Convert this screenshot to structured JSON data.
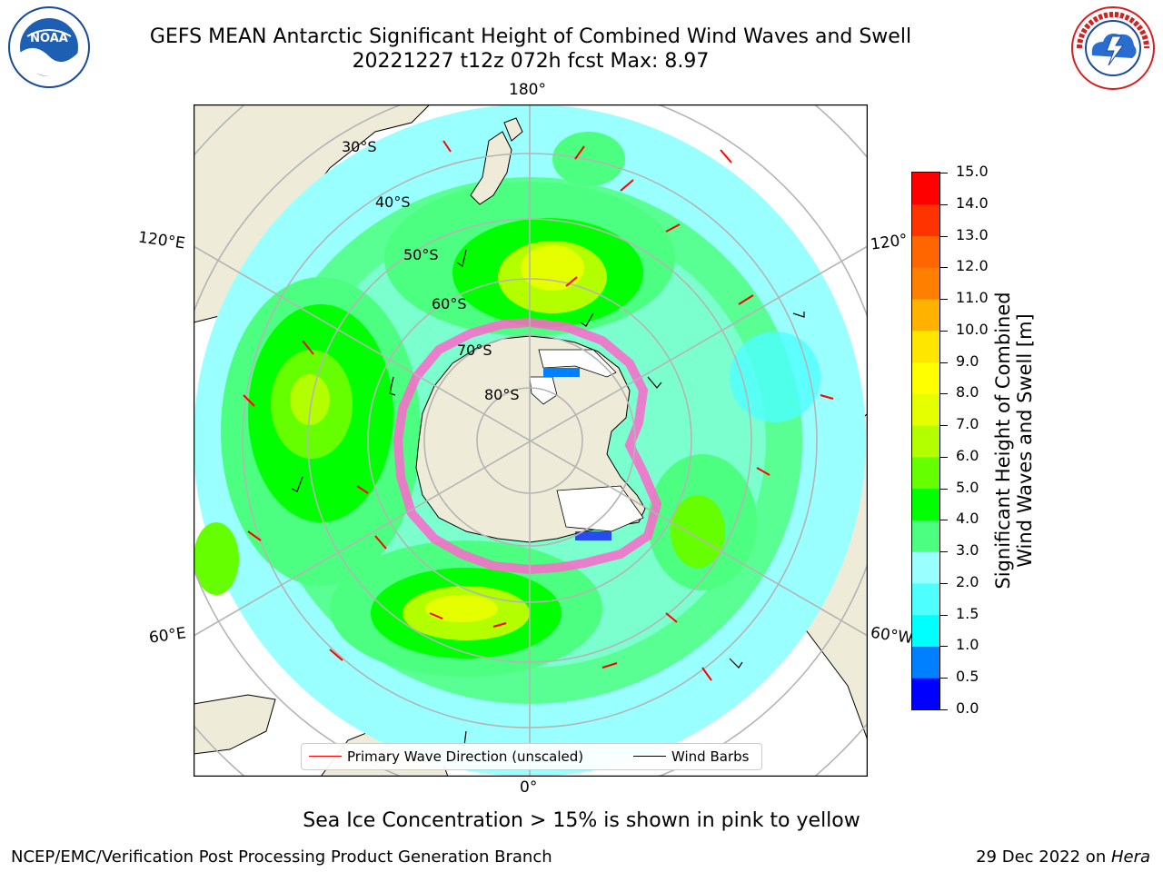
{
  "header": {
    "title": "GEFS MEAN Antarctic Significant Height of Combined Wind Waves and Swell",
    "subtitle": "20221227 t12z 072h fcst   Max: 8.97",
    "noaa_logo_text": "NOAA",
    "nws_logo_text": "NATIONAL WEATHER SERVICE"
  },
  "map": {
    "projection": "south-polar-stereographic",
    "longitude_labels": {
      "top": "180°",
      "bottom": "0°",
      "left_upper": "120°E",
      "left_lower": "60°E",
      "right_upper": "120°",
      "right_lower": "60°W"
    },
    "latitude_labels": [
      "30°S",
      "40°S",
      "50°S",
      "60°S",
      "70°S",
      "80°S"
    ],
    "colors": {
      "land": "#efebd9",
      "ocean_low": "#99ffff",
      "grid": "#b4b4b4",
      "wave_arrow": "#ff0000",
      "sea_ice": "#ff66cc"
    }
  },
  "legend": {
    "wave_label": "Primary Wave Direction (unscaled)",
    "wind_label": "Wind Barbs"
  },
  "colorbar": {
    "label_line1": "Significant Height of Combined",
    "label_line2": "Wind Waves and Swell [m]",
    "ticks": [
      "0.0",
      "0.5",
      "1.0",
      "1.5",
      "2.0",
      "3.0",
      "4.0",
      "5.0",
      "6.0",
      "7.0",
      "8.0",
      "9.0",
      "10.0",
      "11.0",
      "12.0",
      "13.0",
      "14.0",
      "15.0"
    ],
    "colors": [
      "#0000ff",
      "#0080ff",
      "#00ffff",
      "#4dffff",
      "#99ffff",
      "#4dff80",
      "#00ff00",
      "#66ff00",
      "#b3ff00",
      "#e6ff00",
      "#ffff00",
      "#ffe600",
      "#ffb300",
      "#ff8000",
      "#ff6600",
      "#ff3300",
      "#ff0000"
    ]
  },
  "footer": {
    "note": "Sea Ice Concentration > 15% is shown in pink to yellow",
    "credit": "NCEP/EMC/Verification Post Processing Product Generation Branch",
    "date": "29 Dec 2022 on ",
    "machine": "Hera"
  }
}
